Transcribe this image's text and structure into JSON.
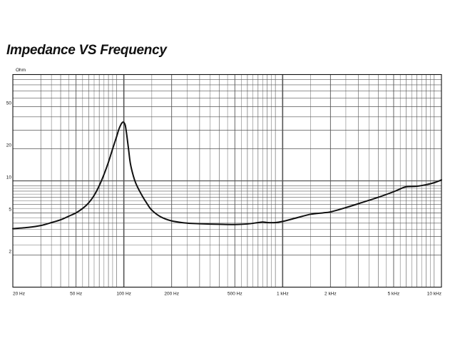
{
  "chart_data": {
    "type": "line",
    "title": "Impedance VS Frequency",
    "ylabel": "Ohm",
    "xlabel": "",
    "x_scale": "log",
    "y_scale": "log",
    "xlim": [
      20,
      10000
    ],
    "ylim": [
      1,
      100
    ],
    "grid": true,
    "x_ticks": [
      {
        "value": 20,
        "label": "20 Hz"
      },
      {
        "value": 50,
        "label": "50 Hz"
      },
      {
        "value": 100,
        "label": "100 Hz"
      },
      {
        "value": 200,
        "label": "200 Hz"
      },
      {
        "value": 500,
        "label": "500 Hz"
      },
      {
        "value": 1000,
        "label": "1 kHz"
      },
      {
        "value": 2000,
        "label": "2 kHz"
      },
      {
        "value": 5000,
        "label": "5 kHz"
      },
      {
        "value": 10000,
        "label": "10 kHz"
      }
    ],
    "y_ticks": [
      {
        "value": 2,
        "label": "2"
      },
      {
        "value": 5,
        "label": "5"
      },
      {
        "value": 10,
        "label": "10"
      },
      {
        "value": 20,
        "label": "20"
      },
      {
        "value": 50,
        "label": "50"
      }
    ],
    "colors": {
      "line": "#111111",
      "grid": "#555555"
    },
    "series": [
      {
        "x": [
          20,
          25,
          30,
          35,
          40,
          45,
          50,
          55,
          60,
          65,
          70,
          75,
          80,
          85,
          90,
          93,
          96,
          98,
          100,
          102,
          104,
          107,
          110,
          115,
          120,
          130,
          140,
          150,
          170,
          200,
          250,
          300,
          400,
          500,
          600,
          700,
          750,
          800,
          900,
          1000,
          1200,
          1500,
          1800,
          2000,
          2500,
          3000,
          4000,
          5000,
          5500,
          6000,
          7000,
          8000,
          9000,
          10000
        ],
        "y": [
          3.55,
          3.65,
          3.8,
          4.05,
          4.3,
          4.65,
          5.0,
          5.5,
          6.2,
          7.3,
          9.0,
          11.5,
          15.0,
          20.0,
          26.0,
          30.5,
          34.0,
          35.5,
          35.5,
          33.5,
          28.0,
          20.0,
          14.5,
          11.0,
          9.2,
          7.3,
          6.1,
          5.3,
          4.6,
          4.2,
          4.0,
          3.95,
          3.9,
          3.88,
          3.93,
          4.05,
          4.1,
          4.05,
          4.05,
          4.15,
          4.45,
          4.85,
          5.0,
          5.1,
          5.6,
          6.1,
          7.0,
          7.9,
          8.4,
          8.8,
          8.9,
          9.2,
          9.6,
          10.2
        ]
      }
    ]
  }
}
